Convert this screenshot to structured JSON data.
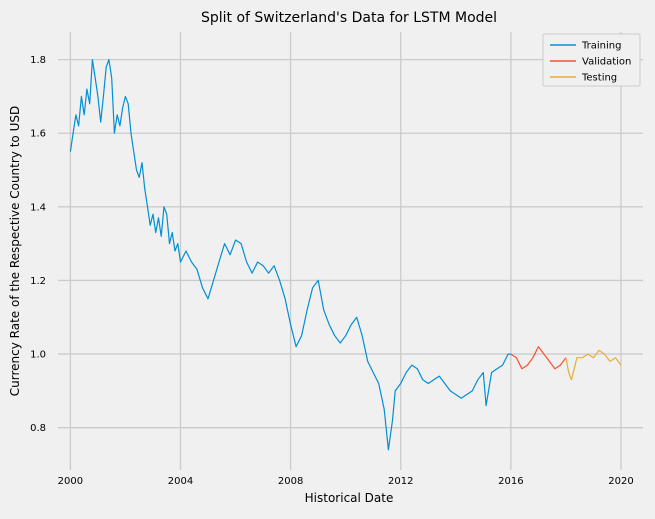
{
  "chart_data": {
    "type": "line",
    "title": "Split of Switzerland's Data for LSTM Model",
    "xlabel": "Historical Date",
    "ylabel": "Currency Rate of the Respective Country to USD",
    "xlim": [
      1999.55,
      2020.8
    ],
    "ylim": [
      0.685,
      1.875
    ],
    "x_ticks": [
      2000,
      2004,
      2008,
      2012,
      2016,
      2020
    ],
    "x_tick_labels": [
      "2000",
      "2004",
      "2008",
      "2012",
      "2016",
      "2020"
    ],
    "y_ticks": [
      0.8,
      1.0,
      1.2,
      1.4,
      1.6,
      1.8
    ],
    "y_tick_labels": [
      "0.8",
      "1.0",
      "1.2",
      "1.4",
      "1.6",
      "1.8"
    ],
    "grid": true,
    "legend_position": "top-right",
    "series": [
      {
        "name": "Training",
        "color": "#008fd5",
        "points": [
          [
            2000.0,
            1.55
          ],
          [
            2000.1,
            1.6
          ],
          [
            2000.2,
            1.65
          ],
          [
            2000.3,
            1.62
          ],
          [
            2000.4,
            1.7
          ],
          [
            2000.5,
            1.65
          ],
          [
            2000.6,
            1.72
          ],
          [
            2000.7,
            1.68
          ],
          [
            2000.8,
            1.8
          ],
          [
            2000.9,
            1.75
          ],
          [
            2001.0,
            1.7
          ],
          [
            2001.1,
            1.63
          ],
          [
            2001.2,
            1.7
          ],
          [
            2001.3,
            1.78
          ],
          [
            2001.4,
            1.8
          ],
          [
            2001.5,
            1.75
          ],
          [
            2001.6,
            1.6
          ],
          [
            2001.7,
            1.65
          ],
          [
            2001.8,
            1.62
          ],
          [
            2001.9,
            1.67
          ],
          [
            2002.0,
            1.7
          ],
          [
            2002.1,
            1.68
          ],
          [
            2002.2,
            1.6
          ],
          [
            2002.3,
            1.55
          ],
          [
            2002.4,
            1.5
          ],
          [
            2002.5,
            1.48
          ],
          [
            2002.6,
            1.52
          ],
          [
            2002.7,
            1.45
          ],
          [
            2002.8,
            1.4
          ],
          [
            2002.9,
            1.35
          ],
          [
            2003.0,
            1.38
          ],
          [
            2003.1,
            1.33
          ],
          [
            2003.2,
            1.37
          ],
          [
            2003.3,
            1.32
          ],
          [
            2003.4,
            1.4
          ],
          [
            2003.5,
            1.38
          ],
          [
            2003.6,
            1.3
          ],
          [
            2003.7,
            1.33
          ],
          [
            2003.8,
            1.28
          ],
          [
            2003.9,
            1.3
          ],
          [
            2004.0,
            1.25
          ],
          [
            2004.2,
            1.28
          ],
          [
            2004.4,
            1.25
          ],
          [
            2004.6,
            1.23
          ],
          [
            2004.8,
            1.18
          ],
          [
            2005.0,
            1.15
          ],
          [
            2005.2,
            1.2
          ],
          [
            2005.4,
            1.25
          ],
          [
            2005.6,
            1.3
          ],
          [
            2005.8,
            1.27
          ],
          [
            2006.0,
            1.31
          ],
          [
            2006.2,
            1.3
          ],
          [
            2006.4,
            1.25
          ],
          [
            2006.6,
            1.22
          ],
          [
            2006.8,
            1.25
          ],
          [
            2007.0,
            1.24
          ],
          [
            2007.2,
            1.22
          ],
          [
            2007.4,
            1.24
          ],
          [
            2007.6,
            1.2
          ],
          [
            2007.8,
            1.15
          ],
          [
            2008.0,
            1.08
          ],
          [
            2008.2,
            1.02
          ],
          [
            2008.4,
            1.05
          ],
          [
            2008.6,
            1.12
          ],
          [
            2008.8,
            1.18
          ],
          [
            2009.0,
            1.2
          ],
          [
            2009.2,
            1.12
          ],
          [
            2009.4,
            1.08
          ],
          [
            2009.6,
            1.05
          ],
          [
            2009.8,
            1.03
          ],
          [
            2010.0,
            1.05
          ],
          [
            2010.2,
            1.08
          ],
          [
            2010.4,
            1.1
          ],
          [
            2010.6,
            1.05
          ],
          [
            2010.8,
            0.98
          ],
          [
            2011.0,
            0.95
          ],
          [
            2011.2,
            0.92
          ],
          [
            2011.4,
            0.85
          ],
          [
            2011.55,
            0.74
          ],
          [
            2011.7,
            0.82
          ],
          [
            2011.8,
            0.9
          ],
          [
            2012.0,
            0.92
          ],
          [
            2012.2,
            0.95
          ],
          [
            2012.4,
            0.97
          ],
          [
            2012.6,
            0.96
          ],
          [
            2012.8,
            0.93
          ],
          [
            2013.0,
            0.92
          ],
          [
            2013.2,
            0.93
          ],
          [
            2013.4,
            0.94
          ],
          [
            2013.6,
            0.92
          ],
          [
            2013.8,
            0.9
          ],
          [
            2014.0,
            0.89
          ],
          [
            2014.2,
            0.88
          ],
          [
            2014.4,
            0.89
          ],
          [
            2014.6,
            0.9
          ],
          [
            2014.8,
            0.93
          ],
          [
            2015.0,
            0.95
          ],
          [
            2015.1,
            0.86
          ],
          [
            2015.3,
            0.95
          ],
          [
            2015.5,
            0.96
          ],
          [
            2015.7,
            0.97
          ],
          [
            2015.9,
            1.0
          ],
          [
            2016.0,
            1.0
          ]
        ]
      },
      {
        "name": "Validation",
        "color": "#fc4f30",
        "points": [
          [
            2016.0,
            1.0
          ],
          [
            2016.2,
            0.99
          ],
          [
            2016.4,
            0.96
          ],
          [
            2016.6,
            0.97
          ],
          [
            2016.8,
            0.99
          ],
          [
            2017.0,
            1.02
          ],
          [
            2017.2,
            1.0
          ],
          [
            2017.4,
            0.98
          ],
          [
            2017.6,
            0.96
          ],
          [
            2017.8,
            0.97
          ],
          [
            2018.0,
            0.99
          ]
        ]
      },
      {
        "name": "Testing",
        "color": "#e5ae38",
        "points": [
          [
            2018.0,
            0.99
          ],
          [
            2018.1,
            0.95
          ],
          [
            2018.2,
            0.93
          ],
          [
            2018.3,
            0.96
          ],
          [
            2018.4,
            0.99
          ],
          [
            2018.6,
            0.99
          ],
          [
            2018.8,
            1.0
          ],
          [
            2019.0,
            0.99
          ],
          [
            2019.2,
            1.01
          ],
          [
            2019.4,
            1.0
          ],
          [
            2019.6,
            0.98
          ],
          [
            2019.8,
            0.99
          ],
          [
            2020.0,
            0.97
          ]
        ]
      }
    ]
  }
}
